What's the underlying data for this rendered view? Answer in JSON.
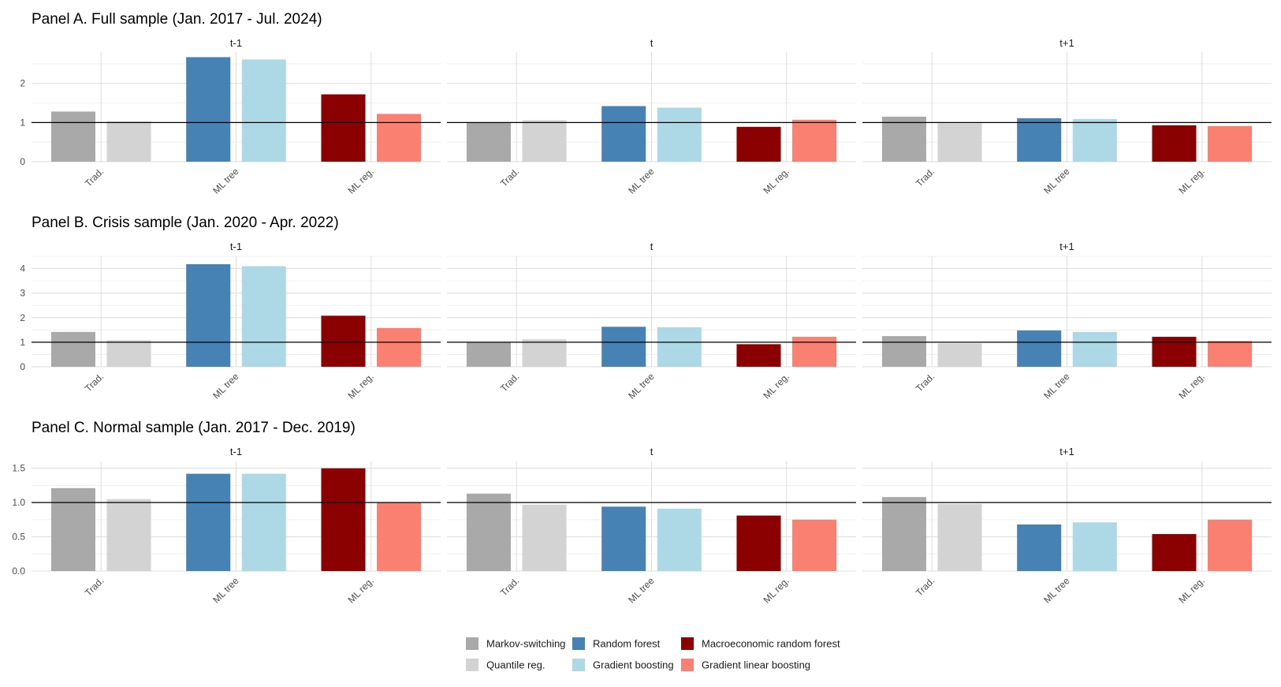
{
  "chart_data": {
    "type": "bar",
    "categories": [
      "Trad.",
      "ML tree",
      "ML reg."
    ],
    "series": [
      {
        "name": "Markov-switching",
        "group": "Trad.",
        "color": "#a9a9a9"
      },
      {
        "name": "Quantile reg.",
        "group": "Trad.",
        "color": "#d3d3d3"
      },
      {
        "name": "Random forest",
        "group": "ML tree",
        "color": "#4682b4"
      },
      {
        "name": "Gradient boosting",
        "group": "ML tree",
        "color": "#add8e6"
      },
      {
        "name": "Macroeconomic random forest",
        "group": "ML reg.",
        "color": "#8b0000"
      },
      {
        "name": "Gradient linear boosting",
        "group": "ML reg.",
        "color": "#fa8072"
      }
    ],
    "reference_line": 1,
    "grid": true,
    "legend": "bottom",
    "panels": [
      {
        "title": "Panel A. Full sample (Jan. 2017 - Jul. 2024)",
        "ylim": [
          0,
          2.8
        ],
        "yticks": [
          0,
          1,
          2
        ],
        "ytick_labels": [
          "0",
          "1",
          "2"
        ],
        "facets": [
          {
            "label": "t-1",
            "values": [
              1.28,
              1.03,
              2.67,
              2.61,
              1.72,
              1.22
            ]
          },
          {
            "label": "t",
            "values": [
              1.01,
              1.06,
              1.42,
              1.38,
              0.89,
              1.07
            ]
          },
          {
            "label": "t+1",
            "values": [
              1.15,
              0.98,
              1.11,
              1.09,
              0.93,
              0.91
            ]
          }
        ]
      },
      {
        "title": "Panel B. Crisis sample (Jan. 2020 - Apr. 2022)",
        "ylim": [
          0,
          4.5
        ],
        "yticks": [
          0,
          1,
          2,
          3,
          4
        ],
        "ytick_labels": [
          "0",
          "1",
          "2",
          "3",
          "4"
        ],
        "facets": [
          {
            "label": "t-1",
            "values": [
              1.42,
              1.08,
              4.18,
              4.1,
              2.08,
              1.58
            ]
          },
          {
            "label": "t",
            "values": [
              1.0,
              1.12,
              1.63,
              1.61,
              0.92,
              1.22
            ]
          },
          {
            "label": "t+1",
            "values": [
              1.25,
              0.95,
              1.48,
              1.42,
              1.22,
              1.05
            ]
          }
        ]
      },
      {
        "title": "Panel C. Normal sample (Jan. 2017 - Dec. 2019)",
        "ylim": [
          0,
          1.6
        ],
        "yticks": [
          0,
          0.5,
          1,
          1.5
        ],
        "ytick_labels": [
          "0.0",
          "0.5",
          "1.0",
          "1.5"
        ],
        "facets": [
          {
            "label": "t-1",
            "values": [
              1.21,
              1.05,
              1.42,
              1.42,
              1.5,
              1.0
            ]
          },
          {
            "label": "t",
            "values": [
              1.13,
              0.97,
              0.94,
              0.91,
              0.81,
              0.75
            ]
          },
          {
            "label": "t+1",
            "values": [
              1.08,
              0.98,
              0.68,
              0.71,
              0.54,
              0.75
            ]
          }
        ]
      }
    ]
  }
}
